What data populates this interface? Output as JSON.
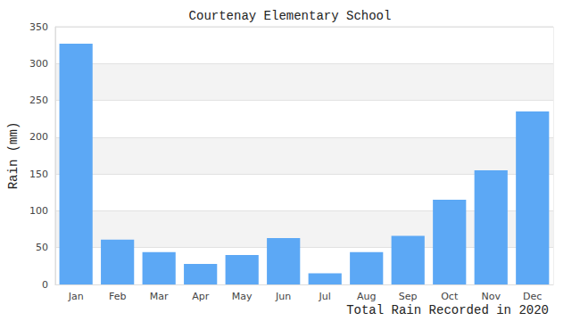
{
  "chart_data": {
    "type": "bar",
    "title": "Courtenay Elementary School",
    "x_label": "Total Rain Recorded in 2020",
    "y_label": "Rain (mm)",
    "categories": [
      "Jan",
      "Feb",
      "Mar",
      "Apr",
      "May",
      "Jun",
      "Jul",
      "Aug",
      "Sep",
      "Oct",
      "Nov",
      "Dec"
    ],
    "values": [
      327,
      61,
      44,
      28,
      40,
      63,
      15,
      44,
      66,
      115,
      155,
      235
    ],
    "color": "#5ca8f5",
    "ylim": [
      0,
      350
    ],
    "yticks": [
      0,
      50,
      100,
      150,
      200,
      250,
      300,
      350
    ],
    "grid": true
  }
}
